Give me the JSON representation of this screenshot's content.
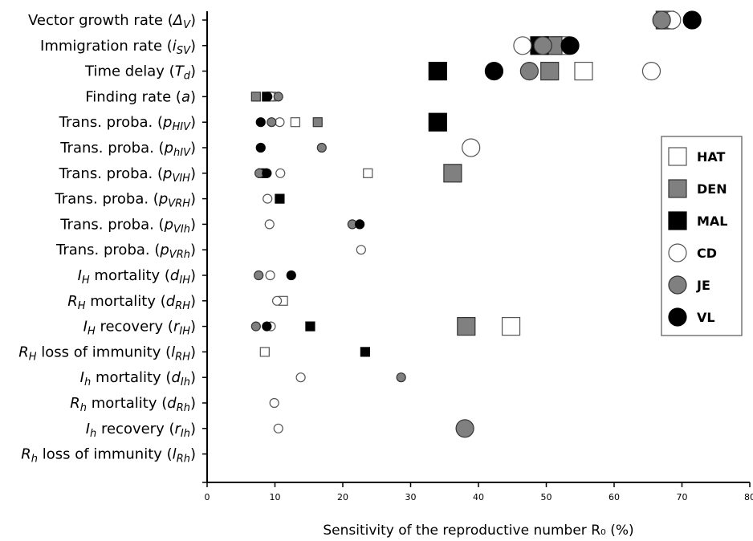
{
  "chart_data": {
    "type": "scatter",
    "xlabel": "Sensitivity of the reproductive number R₀ (%)",
    "xlim": [
      0,
      80
    ],
    "xticks": [
      0,
      10,
      20,
      30,
      40,
      50,
      60,
      70,
      80
    ],
    "xtick_labels": [
      "0",
      "10",
      "20",
      "30",
      "40",
      "50",
      "60",
      "70",
      "80"
    ],
    "grid": false,
    "legend_position": "right",
    "categories": [
      {
        "key": "vector_growth",
        "text": "Vector growth rate (",
        "sym": "Δ",
        "sub": "V"
      },
      {
        "key": "immigration",
        "text": "Immigration rate (",
        "sym": "i",
        "sub": "SV"
      },
      {
        "key": "time_delay",
        "text": "Time delay (",
        "sym": "T",
        "sub": "d"
      },
      {
        "key": "finding_rate",
        "text": "Finding rate (",
        "sym": "a",
        "sub": ""
      },
      {
        "key": "p_HIV",
        "text": "Trans. proba. (",
        "sym": "p",
        "sub": "HIV"
      },
      {
        "key": "p_hIV",
        "text": "Trans. proba. (",
        "sym": "p",
        "sub": "hIV"
      },
      {
        "key": "p_VIH",
        "text": "Trans. proba. (",
        "sym": "p",
        "sub": "VIH"
      },
      {
        "key": "p_VRH",
        "text": "Trans. proba. (",
        "sym": "p",
        "sub": "VRH"
      },
      {
        "key": "p_VIh",
        "text": "Trans. proba. (",
        "sym": "p",
        "sub": "VIh"
      },
      {
        "key": "p_VRh",
        "text": "Trans. proba. (",
        "sym": "p",
        "sub": "VRh"
      },
      {
        "key": "d_IH",
        "pre": "I",
        "presub": "H",
        "text": " mortality (",
        "sym": "d",
        "sub": "IH"
      },
      {
        "key": "d_RH",
        "pre": "R",
        "presub": "H",
        "text": " mortality (",
        "sym": "d",
        "sub": "RH"
      },
      {
        "key": "r_IH",
        "pre": "I",
        "presub": "H",
        "text": " recovery (",
        "sym": "r",
        "sub": "IH"
      },
      {
        "key": "l_RH",
        "pre": "R",
        "presub": "H",
        "text": " loss of immunity (",
        "sym": "l",
        "sub": "RH"
      },
      {
        "key": "d_Ih",
        "pre": "I",
        "presub": "h",
        "text": " mortality (",
        "sym": "d",
        "sub": "Ih"
      },
      {
        "key": "d_Rh",
        "pre": "R",
        "presub": "h",
        "text": " mortality (",
        "sym": "d",
        "sub": "Rh"
      },
      {
        "key": "r_Ih",
        "pre": "I",
        "presub": "h",
        "text": " recovery (",
        "sym": "r",
        "sub": "Ih"
      },
      {
        "key": "l_Rh",
        "pre": "R",
        "presub": "h",
        "text": " loss of immunity (",
        "sym": "l",
        "sub": "Rh"
      }
    ],
    "series": [
      {
        "name": "HAT",
        "marker": "square",
        "fill": "#ffffff",
        "stroke": "#555555",
        "points": [
          [
            1,
            52
          ],
          [
            2,
            55.5
          ],
          [
            3,
            9.5
          ],
          [
            4,
            13
          ],
          [
            6,
            23.7
          ],
          [
            11,
            11.2
          ],
          [
            12,
            44.8
          ],
          [
            13,
            8.5
          ]
        ]
      },
      {
        "name": "DEN",
        "marker": "square",
        "fill": "#808080",
        "stroke": "#333333",
        "points": [
          [
            0,
            67.5
          ],
          [
            1,
            51
          ],
          [
            2,
            50.5
          ],
          [
            3,
            7.2
          ],
          [
            4,
            16.3
          ],
          [
            6,
            36.2
          ],
          [
            12,
            38.2
          ]
        ]
      },
      {
        "name": "MAL",
        "marker": "square",
        "fill": "#000000",
        "stroke": "#000000",
        "points": [
          [
            1,
            49
          ],
          [
            2,
            34
          ],
          [
            3,
            8.8
          ],
          [
            4,
            34
          ],
          [
            6,
            8.2
          ],
          [
            7,
            10.7
          ],
          [
            12,
            15.2
          ],
          [
            13,
            23.3
          ]
        ]
      },
      {
        "name": "CD",
        "marker": "circle",
        "fill": "#ffffff",
        "stroke": "#555555",
        "points": [
          [
            0,
            68.5
          ],
          [
            1,
            46.5
          ],
          [
            2,
            65.5
          ],
          [
            3,
            9.5
          ],
          [
            4,
            10.7
          ],
          [
            5,
            38.9
          ],
          [
            6,
            10.8
          ],
          [
            7,
            8.9
          ],
          [
            8,
            9.2
          ],
          [
            9,
            22.7
          ],
          [
            10,
            9.3
          ],
          [
            11,
            10.3
          ],
          [
            12,
            9.4
          ],
          [
            14,
            13.8
          ],
          [
            15,
            9.9
          ],
          [
            16,
            10.5
          ]
        ]
      },
      {
        "name": "JE",
        "marker": "circle",
        "fill": "#808080",
        "stroke": "#333333",
        "points": [
          [
            0,
            67
          ],
          [
            1,
            49.5
          ],
          [
            2,
            47.5
          ],
          [
            3,
            10.5
          ],
          [
            4,
            9.5
          ],
          [
            5,
            16.9
          ],
          [
            6,
            7.7
          ],
          [
            8,
            21.4
          ],
          [
            10,
            7.6
          ],
          [
            12,
            7.2
          ],
          [
            14,
            28.6
          ],
          [
            16,
            38
          ]
        ]
      },
      {
        "name": "VL",
        "marker": "circle",
        "fill": "#000000",
        "stroke": "#000000",
        "points": [
          [
            0,
            71.5
          ],
          [
            1,
            53.5
          ],
          [
            2,
            42.3
          ],
          [
            3,
            8.9
          ],
          [
            4,
            7.9
          ],
          [
            5,
            7.9
          ],
          [
            6,
            8.8
          ],
          [
            8,
            22.5
          ],
          [
            10,
            12.4
          ],
          [
            12,
            8.8
          ]
        ]
      }
    ],
    "marker_sizes": [
      [
        13,
        13,
        13,
        13,
        13,
        13,
        13,
        13,
        13,
        13,
        13,
        13,
        13,
        13,
        13,
        13,
        13,
        13
      ]
    ],
    "big_markers": [
      [
        0,
        "all"
      ],
      [
        1,
        "all"
      ],
      [
        2,
        "all"
      ],
      [
        "p_HIV_MAL"
      ],
      [
        "p_hIV_CD"
      ],
      [
        "p_VIH_DEN"
      ],
      [
        "r_IH_DEN"
      ],
      [
        "r_IH_HAT"
      ],
      [
        "r_Ih_JE"
      ]
    ]
  }
}
